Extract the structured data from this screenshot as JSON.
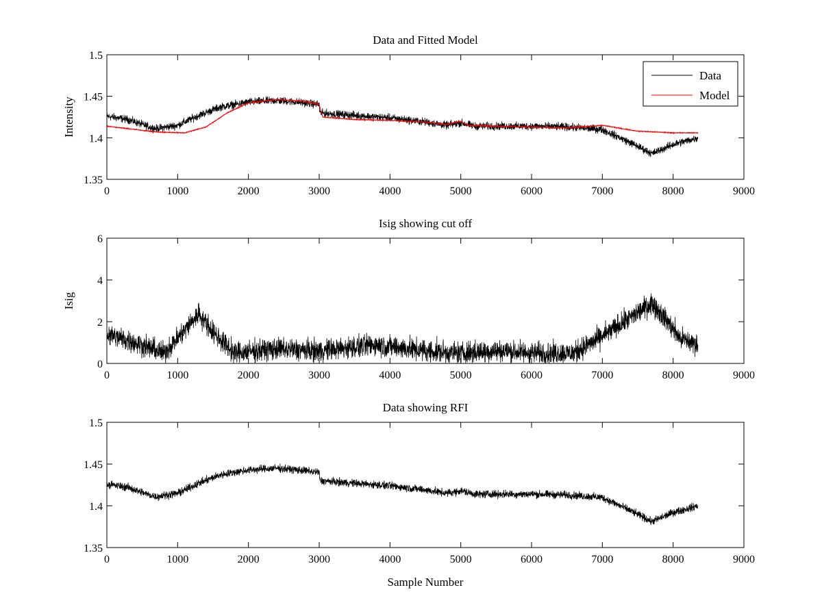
{
  "colors": {
    "data": "#000000",
    "model": "#ff0000",
    "axes": "#000000",
    "background": "#ffffff"
  },
  "chart_data": [
    {
      "type": "line",
      "title": "Data and Fitted Model",
      "xlabel": "",
      "ylabel": "Intensity",
      "xlim": [
        0,
        9000
      ],
      "ylim": [
        1.35,
        1.5
      ],
      "xticks": [
        "0",
        "1000",
        "2000",
        "3000",
        "4000",
        "5000",
        "6000",
        "7000",
        "8000",
        "9000"
      ],
      "yticks": [
        "1.35",
        "1.4",
        "1.45",
        "1.5"
      ],
      "legend": {
        "placement": "top-right",
        "entries": [
          "Data",
          "Model"
        ]
      },
      "grid": false,
      "series": [
        {
          "name": "Data",
          "color": "#000000",
          "noise": 0.004,
          "x": [
            0,
            300,
            600,
            700,
            1000,
            1300,
            1600,
            2000,
            2400,
            2700,
            3000,
            3010,
            3500,
            4000,
            4500,
            4800,
            5000,
            5200,
            5500,
            6000,
            6500,
            7000,
            7400,
            7700,
            8000,
            8350
          ],
          "y": [
            1.426,
            1.422,
            1.413,
            1.411,
            1.415,
            1.427,
            1.437,
            1.443,
            1.445,
            1.443,
            1.44,
            1.43,
            1.427,
            1.424,
            1.419,
            1.415,
            1.418,
            1.414,
            1.414,
            1.414,
            1.413,
            1.41,
            1.394,
            1.381,
            1.392,
            1.4
          ]
        },
        {
          "name": "Model",
          "color": "#ff0000",
          "noise": 0.0004,
          "x": [
            0,
            400,
            700,
            1100,
            1400,
            1700,
            2000,
            2400,
            2800,
            3000,
            3050,
            3500,
            4000,
            4500,
            4800,
            5000,
            5100,
            5500,
            6000,
            6500,
            7000,
            7500,
            8000,
            8350
          ],
          "y": [
            1.414,
            1.41,
            1.407,
            1.406,
            1.413,
            1.43,
            1.442,
            1.446,
            1.444,
            1.44,
            1.425,
            1.422,
            1.421,
            1.419,
            1.416,
            1.42,
            1.415,
            1.414,
            1.413,
            1.412,
            1.415,
            1.408,
            1.406,
            1.406
          ]
        }
      ]
    },
    {
      "type": "line",
      "title": "Isig showing cut off",
      "xlabel": "",
      "ylabel": "Isig",
      "xlim": [
        0,
        9000
      ],
      "ylim": [
        0,
        6
      ],
      "xticks": [
        "0",
        "1000",
        "2000",
        "3000",
        "4000",
        "5000",
        "6000",
        "7000",
        "8000",
        "9000"
      ],
      "yticks": [
        "0",
        "2",
        "4",
        "6"
      ],
      "grid": false,
      "series": [
        {
          "name": "Isig",
          "color": "#000000",
          "noise": 0.45,
          "floor": 0,
          "x": [
            0,
            400,
            800,
            1000,
            1300,
            1500,
            1800,
            2400,
            3000,
            3800,
            4500,
            5000,
            5500,
            6000,
            6600,
            7000,
            7400,
            7700,
            7900,
            8100,
            8350
          ],
          "y": [
            1.4,
            1.0,
            0.5,
            1.2,
            2.4,
            1.5,
            0.5,
            0.7,
            0.6,
            0.9,
            0.6,
            0.5,
            0.6,
            0.5,
            0.5,
            1.3,
            2.2,
            2.9,
            2.1,
            1.2,
            0.9
          ]
        }
      ]
    },
    {
      "type": "line",
      "title": "Data showing RFI",
      "xlabel": "Sample Number",
      "ylabel": "",
      "xlim": [
        0,
        9000
      ],
      "ylim": [
        1.35,
        1.5
      ],
      "xticks": [
        "0",
        "1000",
        "2000",
        "3000",
        "4000",
        "5000",
        "6000",
        "7000",
        "8000",
        "9000"
      ],
      "yticks": [
        "1.35",
        "1.4",
        "1.45",
        "1.5"
      ],
      "grid": false,
      "series": [
        {
          "name": "Data",
          "color": "#000000",
          "noise": 0.004,
          "x": [
            0,
            300,
            600,
            700,
            1000,
            1300,
            1600,
            2000,
            2400,
            2700,
            3000,
            3010,
            3500,
            4000,
            4500,
            4800,
            5000,
            5200,
            5500,
            6000,
            6500,
            7000,
            7400,
            7700,
            8000,
            8350
          ],
          "y": [
            1.426,
            1.422,
            1.413,
            1.411,
            1.415,
            1.427,
            1.437,
            1.443,
            1.445,
            1.443,
            1.44,
            1.43,
            1.427,
            1.424,
            1.419,
            1.415,
            1.418,
            1.414,
            1.414,
            1.414,
            1.413,
            1.41,
            1.394,
            1.381,
            1.392,
            1.4
          ]
        }
      ]
    }
  ]
}
